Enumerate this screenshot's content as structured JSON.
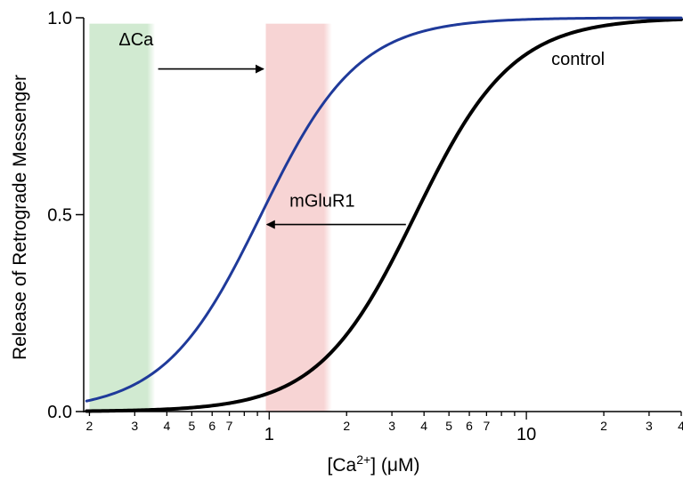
{
  "chart_data": {
    "type": "line",
    "xlabel": {
      "main": "[Ca",
      "sup": "2+",
      "rest": "] (μM)"
    },
    "ylabel": "Release of Retrograde Messenger",
    "x_scale": "log",
    "xlim": [
      0.19,
      40
    ],
    "ylim": [
      0,
      1
    ],
    "y_ticks": [
      {
        "value": 0.0,
        "label": "0.0"
      },
      {
        "value": 0.5,
        "label": "0.5"
      },
      {
        "value": 1.0,
        "label": "1.0"
      }
    ],
    "x_ticks": [
      {
        "value": 0.2,
        "label": "2",
        "major": false
      },
      {
        "value": 0.3,
        "label": "3",
        "major": false
      },
      {
        "value": 0.4,
        "label": "4",
        "major": false
      },
      {
        "value": 0.5,
        "label": "5",
        "major": false
      },
      {
        "value": 0.6,
        "label": "6",
        "major": false
      },
      {
        "value": 0.7,
        "label": "7",
        "major": false
      },
      {
        "value": 0.8,
        "label": "",
        "major": false
      },
      {
        "value": 0.9,
        "label": "",
        "major": false
      },
      {
        "value": 1,
        "label": "1",
        "major": true
      },
      {
        "value": 2,
        "label": "2",
        "major": false
      },
      {
        "value": 3,
        "label": "3",
        "major": false
      },
      {
        "value": 4,
        "label": "4",
        "major": false
      },
      {
        "value": 5,
        "label": "5",
        "major": false
      },
      {
        "value": 6,
        "label": "6",
        "major": false
      },
      {
        "value": 7,
        "label": "7",
        "major": false
      },
      {
        "value": 8,
        "label": "",
        "major": false
      },
      {
        "value": 9,
        "label": "",
        "major": false
      },
      {
        "value": 10,
        "label": "10",
        "major": true
      },
      {
        "value": 20,
        "label": "2",
        "major": false
      },
      {
        "value": 30,
        "label": "3",
        "major": false
      },
      {
        "value": 40,
        "label": "4",
        "major": false
      }
    ],
    "series": [
      {
        "name": "control",
        "color": "#000000",
        "ec50": 3.7,
        "hill": 2.3
      },
      {
        "color": "#1f3a9a",
        "ec50": 0.93,
        "hill": 2.3
      }
    ],
    "bands": [
      {
        "x_from": 0.2,
        "x_to": 0.36,
        "color": "#c9e6c9"
      },
      {
        "x_from": 0.97,
        "x_to": 1.75,
        "color": "#f6cfcf"
      }
    ],
    "annotations": [
      {
        "text": "ΔCa",
        "x": 0.26,
        "y": 0.93
      },
      {
        "text": "mGluR1",
        "x": 1.2,
        "y": 0.52
      },
      {
        "text": "control",
        "x": 12.5,
        "y": 0.88
      }
    ],
    "arrows": [
      {
        "from": [
          0.37,
          0.87
        ],
        "to": [
          0.95,
          0.87
        ]
      },
      {
        "from": [
          3.4,
          0.475
        ],
        "to": [
          0.98,
          0.475
        ]
      }
    ]
  }
}
